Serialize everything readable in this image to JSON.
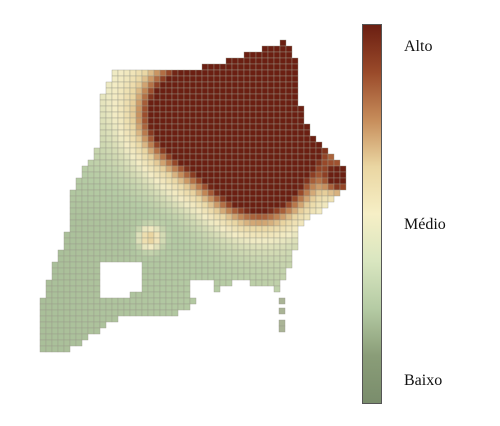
{
  "legend": {
    "labels": {
      "high": "Alto",
      "mid": "Médio",
      "low": "Baixo"
    },
    "colors": [
      "#6b1f12",
      "#9a4a2a",
      "#c68c5a",
      "#ead6a2",
      "#f6efc6",
      "#d9e6c0",
      "#b5cba4",
      "#8a9d78",
      "#7a8d6c"
    ]
  },
  "map": {
    "cell_color_low": "#8fa27c",
    "cell_color_mid": "#f3ecc5",
    "cell_color_high": "#6b1f12",
    "grid_line_color": "#9a9a8a"
  }
}
